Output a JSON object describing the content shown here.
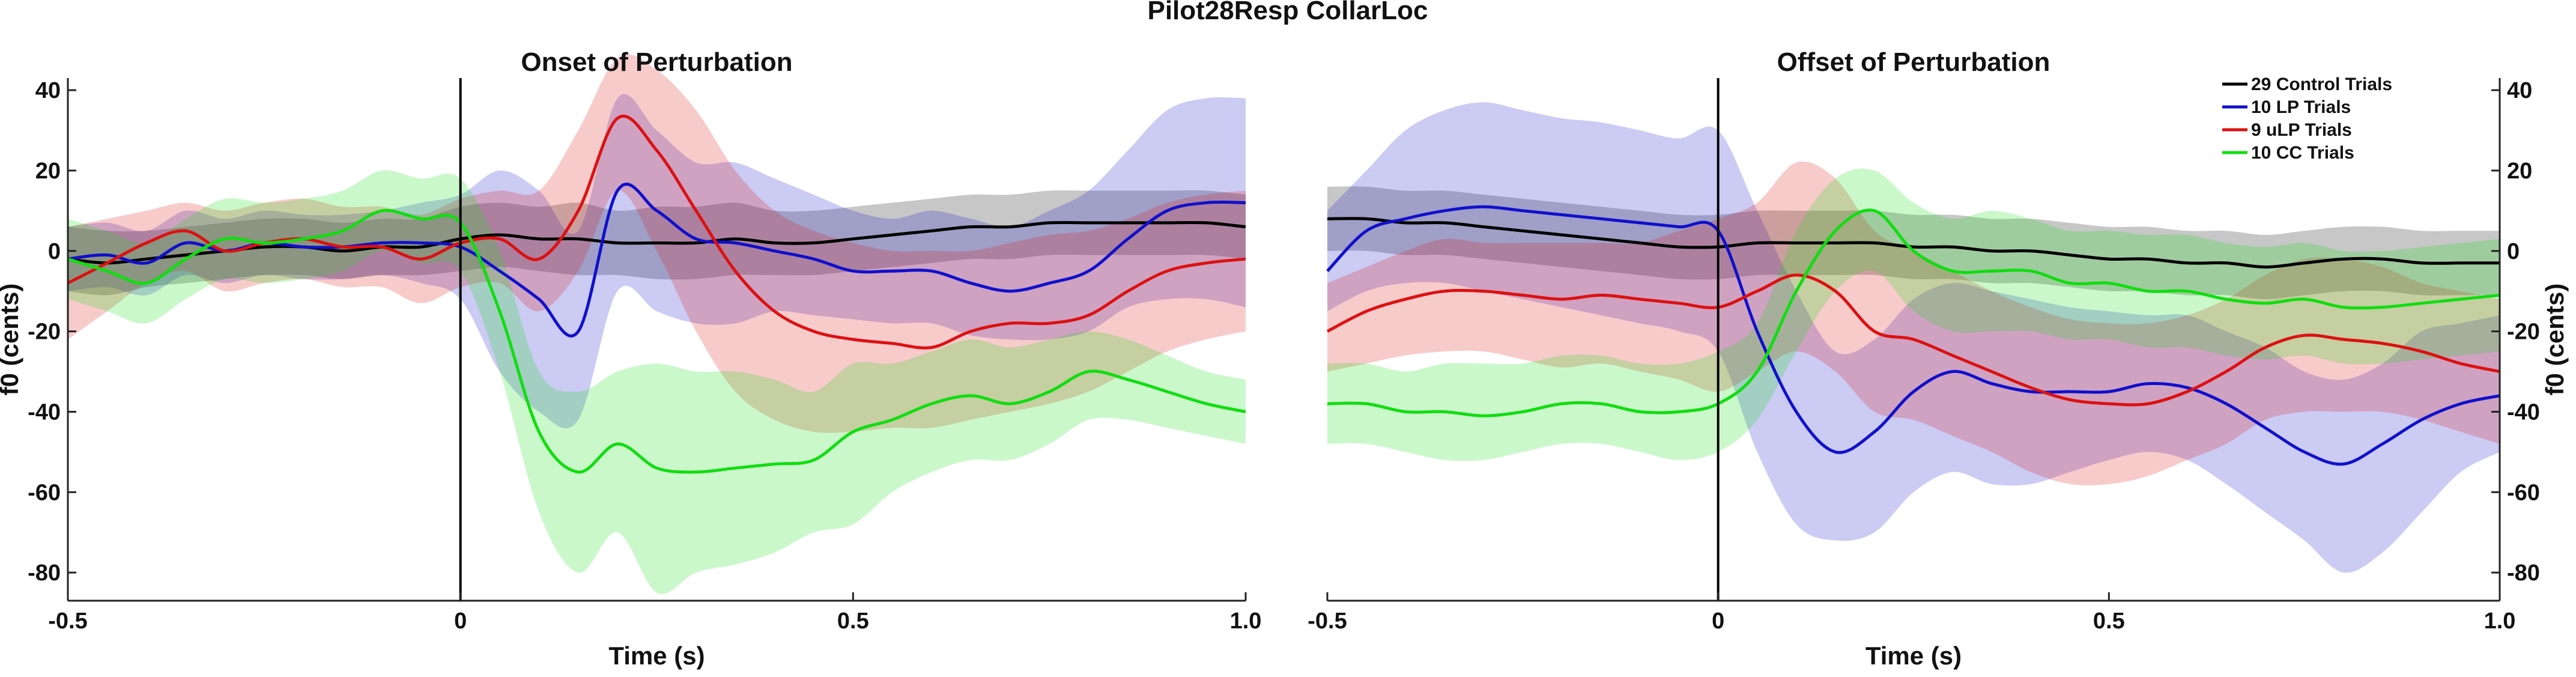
{
  "figure_title": "Pilot28Resp CollarLoc",
  "chart_data": [
    {
      "type": "line",
      "title": "Onset of Perturbation",
      "xlabel": "Time (s)",
      "ylabel": "f0 (cents)",
      "ylabel_side": "left",
      "xlim": [
        -0.5,
        1.0
      ],
      "ylim": [
        -87,
        43
      ],
      "xticks": [
        -0.5,
        0,
        0.5,
        1.0
      ],
      "xtick_labels": [
        "-0.5",
        "0",
        "0.5",
        "1.0"
      ],
      "yticks": [
        40,
        20,
        0,
        -20,
        -40,
        -60,
        -80
      ],
      "ytick_labels": [
        "40",
        "20",
        "0",
        "-20",
        "-40",
        "-60",
        "-80"
      ],
      "vline_x": 0,
      "grid": false,
      "x": [
        -0.5,
        -0.45,
        -0.4,
        -0.35,
        -0.3,
        -0.25,
        -0.2,
        -0.15,
        -0.1,
        -0.05,
        0,
        0.05,
        0.1,
        0.15,
        0.2,
        0.25,
        0.3,
        0.35,
        0.4,
        0.45,
        0.5,
        0.55,
        0.6,
        0.65,
        0.7,
        0.75,
        0.8,
        0.85,
        0.9,
        0.95,
        1.0
      ],
      "series": [
        {
          "name": "29 Control Trials",
          "color": "#000000",
          "values": [
            -2,
            -3,
            -2,
            -1,
            0,
            1,
            1,
            0,
            1,
            1,
            3,
            4,
            3,
            3,
            2,
            2,
            2,
            3,
            2,
            2,
            3,
            4,
            5,
            6,
            6,
            7,
            7,
            7,
            7,
            7,
            6
          ],
          "lower": [
            -10,
            -11,
            -9,
            -8,
            -7,
            -6,
            -6,
            -7,
            -6,
            -6,
            -5,
            -4,
            -5,
            -6,
            -6,
            -7,
            -7,
            -6,
            -6,
            -6,
            -5,
            -4,
            -3,
            -2,
            -2,
            -1,
            -1,
            -1,
            -1,
            -1,
            -2
          ],
          "upper": [
            6,
            5,
            5,
            6,
            7,
            8,
            8,
            7,
            8,
            8,
            11,
            12,
            11,
            12,
            10,
            11,
            11,
            12,
            10,
            10,
            11,
            12,
            13,
            14,
            14,
            15,
            15,
            15,
            15,
            15,
            14
          ]
        },
        {
          "name": "10 LP Trials",
          "color": "#1010cc",
          "values": [
            -2,
            -1,
            -3,
            2,
            0,
            2,
            1,
            1,
            2,
            2,
            1,
            -5,
            -12,
            -20,
            15,
            10,
            3,
            2,
            0,
            -2,
            -5,
            -5,
            -5,
            -8,
            -10,
            -8,
            -5,
            3,
            10,
            12,
            12
          ],
          "lower": [
            -10,
            -9,
            -11,
            -6,
            -8,
            -6,
            -7,
            -7,
            -6,
            -8,
            -12,
            -30,
            -40,
            -42,
            -10,
            -15,
            -18,
            -18,
            -15,
            -16,
            -17,
            -18,
            -18,
            -21,
            -22,
            -22,
            -20,
            -14,
            -12,
            -12,
            -14
          ],
          "upper": [
            6,
            7,
            5,
            10,
            8,
            10,
            9,
            9,
            10,
            12,
            14,
            20,
            15,
            5,
            38,
            30,
            22,
            22,
            18,
            14,
            10,
            8,
            10,
            8,
            6,
            10,
            15,
            25,
            35,
            38,
            38
          ]
        },
        {
          "name": "9 uLP Trials",
          "color": "#dd1111",
          "values": [
            -8,
            -3,
            2,
            5,
            0,
            2,
            3,
            1,
            1,
            -2,
            2,
            3,
            -2,
            10,
            33,
            25,
            10,
            -5,
            -15,
            -20,
            -22,
            -23,
            -24,
            -20,
            -18,
            -18,
            -16,
            -10,
            -5,
            -3,
            -2
          ],
          "lower": [
            -22,
            -15,
            -8,
            -5,
            -10,
            -8,
            -7,
            -9,
            -9,
            -13,
            -9,
            -8,
            -15,
            -5,
            15,
            0,
            -20,
            -35,
            -42,
            -45,
            -45,
            -44,
            -44,
            -42,
            -40,
            -38,
            -35,
            -30,
            -25,
            -22,
            -20
          ],
          "upper": [
            6,
            8,
            10,
            12,
            10,
            12,
            13,
            11,
            11,
            9,
            13,
            15,
            15,
            30,
            48,
            45,
            35,
            20,
            10,
            5,
            2,
            0,
            0,
            0,
            2,
            4,
            5,
            8,
            12,
            14,
            15
          ]
        },
        {
          "name": "10 CC Trials",
          "color": "#11dd11",
          "values": [
            -2,
            -5,
            -8,
            -2,
            3,
            2,
            3,
            5,
            10,
            8,
            7,
            -15,
            -45,
            -55,
            -48,
            -54,
            -55,
            -54,
            -53,
            -52,
            -45,
            -42,
            -38,
            -36,
            -38,
            -35,
            -30,
            -32,
            -35,
            -38,
            -40
          ],
          "lower": [
            -12,
            -15,
            -18,
            -12,
            -7,
            -8,
            -7,
            -5,
            0,
            -3,
            -5,
            -30,
            -65,
            -80,
            -70,
            -85,
            -80,
            -78,
            -75,
            -70,
            -68,
            -60,
            -55,
            -52,
            -52,
            -48,
            -42,
            -42,
            -44,
            -46,
            -48
          ],
          "upper": [
            8,
            5,
            2,
            8,
            13,
            12,
            13,
            15,
            20,
            18,
            18,
            0,
            -30,
            -35,
            -30,
            -28,
            -30,
            -30,
            -32,
            -35,
            -28,
            -28,
            -25,
            -22,
            -24,
            -22,
            -20,
            -22,
            -26,
            -30,
            -32
          ]
        }
      ]
    },
    {
      "type": "line",
      "title": "Offset of Perturbation",
      "xlabel": "Time (s)",
      "ylabel": "f0 (cents)",
      "ylabel_side": "right",
      "xlim": [
        -0.5,
        1.0
      ],
      "ylim": [
        -87,
        43
      ],
      "xticks": [
        -0.5,
        0,
        0.5,
        1.0
      ],
      "xtick_labels": [
        "-0.5",
        "0",
        "0.5",
        "1.0"
      ],
      "yticks": [
        40,
        20,
        0,
        -20,
        -40,
        -60,
        -80
      ],
      "ytick_labels": [
        "40",
        "20",
        "0",
        "-20",
        "-40",
        "-60",
        "-80"
      ],
      "vline_x": 0,
      "grid": false,
      "legend_position": "top-right",
      "x": [
        -0.5,
        -0.45,
        -0.4,
        -0.35,
        -0.3,
        -0.25,
        -0.2,
        -0.15,
        -0.1,
        -0.05,
        0,
        0.05,
        0.1,
        0.15,
        0.2,
        0.25,
        0.3,
        0.35,
        0.4,
        0.45,
        0.5,
        0.55,
        0.6,
        0.65,
        0.7,
        0.75,
        0.8,
        0.85,
        0.9,
        0.95,
        1.0
      ],
      "series": [
        {
          "name": "29 Control Trials",
          "color": "#000000",
          "values": [
            8,
            8,
            7,
            7,
            6,
            5,
            4,
            3,
            2,
            1,
            1,
            2,
            2,
            2,
            2,
            1,
            1,
            0,
            0,
            -1,
            -2,
            -2,
            -3,
            -3,
            -4,
            -3,
            -2,
            -2,
            -3,
            -3,
            -3
          ],
          "lower": [
            0,
            0,
            -1,
            -1,
            -2,
            -3,
            -4,
            -5,
            -6,
            -7,
            -7,
            -6,
            -6,
            -6,
            -6,
            -7,
            -7,
            -8,
            -8,
            -9,
            -10,
            -10,
            -11,
            -11,
            -12,
            -11,
            -10,
            -10,
            -11,
            -11,
            -11
          ],
          "upper": [
            16,
            16,
            15,
            15,
            14,
            13,
            12,
            11,
            10,
            9,
            9,
            10,
            10,
            10,
            10,
            9,
            9,
            8,
            8,
            7,
            6,
            6,
            5,
            5,
            4,
            5,
            6,
            6,
            5,
            5,
            5
          ]
        },
        {
          "name": "10 LP Trials",
          "color": "#1010cc",
          "values": [
            -5,
            5,
            8,
            10,
            11,
            10,
            9,
            8,
            7,
            6,
            5,
            -20,
            -40,
            -50,
            -45,
            -35,
            -30,
            -33,
            -35,
            -35,
            -35,
            -33,
            -34,
            -38,
            -44,
            -50,
            -53,
            -48,
            -42,
            -38,
            -36
          ],
          "lower": [
            -15,
            -10,
            -8,
            -8,
            -10,
            -12,
            -14,
            -16,
            -18,
            -20,
            -25,
            -50,
            -68,
            -72,
            -70,
            -60,
            -55,
            -58,
            -58,
            -55,
            -52,
            -50,
            -52,
            -58,
            -65,
            -72,
            -80,
            -75,
            -65,
            -55,
            -50
          ],
          "upper": [
            10,
            20,
            30,
            35,
            37,
            35,
            33,
            32,
            30,
            28,
            30,
            10,
            -10,
            -25,
            -22,
            -12,
            -8,
            -10,
            -12,
            -14,
            -15,
            -16,
            -16,
            -20,
            -24,
            -30,
            -32,
            -28,
            -20,
            -18,
            -16
          ]
        },
        {
          "name": "9 uLP Trials",
          "color": "#dd1111",
          "values": [
            -20,
            -15,
            -12,
            -10,
            -10,
            -11,
            -12,
            -11,
            -12,
            -13,
            -14,
            -10,
            -6,
            -10,
            -20,
            -22,
            -26,
            -30,
            -34,
            -37,
            -38,
            -38,
            -35,
            -30,
            -24,
            -21,
            -22,
            -23,
            -25,
            -28,
            -30
          ],
          "lower": [
            -30,
            -28,
            -26,
            -25,
            -25,
            -27,
            -29,
            -28,
            -30,
            -32,
            -35,
            -30,
            -25,
            -30,
            -40,
            -42,
            -46,
            -50,
            -55,
            -58,
            -58,
            -56,
            -52,
            -48,
            -42,
            -40,
            -40,
            -40,
            -42,
            -45,
            -48
          ],
          "upper": [
            -8,
            -4,
            0,
            3,
            2,
            2,
            2,
            2,
            2,
            5,
            8,
            12,
            22,
            18,
            5,
            0,
            -5,
            -10,
            -14,
            -17,
            -18,
            -18,
            -16,
            -12,
            -6,
            -2,
            -2,
            -4,
            -8,
            -10,
            -12
          ]
        },
        {
          "name": "10 CC Trials",
          "color": "#11dd11",
          "values": [
            -38,
            -38,
            -40,
            -40,
            -41,
            -40,
            -38,
            -38,
            -40,
            -40,
            -38,
            -30,
            -10,
            5,
            10,
            0,
            -5,
            -5,
            -5,
            -8,
            -8,
            -10,
            -10,
            -12,
            -13,
            -12,
            -14,
            -14,
            -13,
            -12,
            -11
          ],
          "lower": [
            -48,
            -48,
            -50,
            -52,
            -52,
            -50,
            -48,
            -48,
            -50,
            -52,
            -50,
            -42,
            -25,
            -10,
            -5,
            -15,
            -20,
            -20,
            -20,
            -22,
            -22,
            -24,
            -24,
            -26,
            -27,
            -26,
            -28,
            -28,
            -27,
            -26,
            -25
          ],
          "upper": [
            -28,
            -28,
            -30,
            -28,
            -28,
            -28,
            -26,
            -26,
            -28,
            -28,
            -25,
            -18,
            5,
            18,
            20,
            12,
            8,
            10,
            8,
            5,
            5,
            4,
            4,
            2,
            1,
            2,
            0,
            0,
            1,
            2,
            3
          ]
        }
      ]
    }
  ]
}
